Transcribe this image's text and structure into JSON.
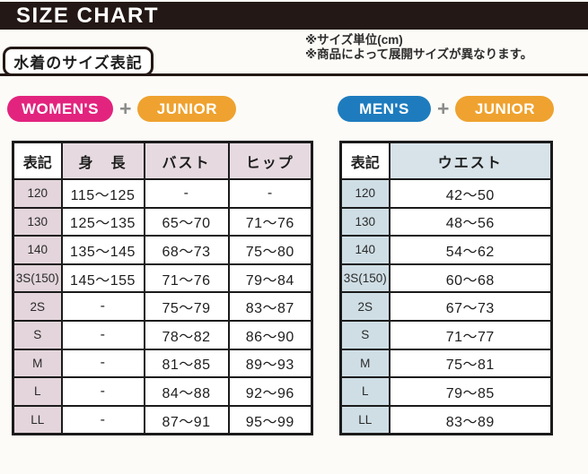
{
  "page": {
    "title": "SIZE CHART",
    "section_label": "水着のサイズ表記",
    "notes": [
      "※サイズ単位(cm)",
      "※商品によって展開サイズが異なります。"
    ]
  },
  "badges": {
    "womens": "WOMEN'S",
    "mens": "MEN'S",
    "junior": "JUNIOR",
    "plus": "+"
  },
  "colors": {
    "title_bar_black": "#231815",
    "womens_pink": "#e2247e",
    "mens_blue": "#1e7cbe",
    "junior_orange": "#efa22f",
    "plus_gray": "#8c8c8c",
    "womens_header_tint": "#e6dae0",
    "womens_col_tint": "#e3d5db",
    "mens_header_tint": "#d7e3e9",
    "mens_col_tint": "#cfdee5"
  },
  "womens_table": {
    "headers": [
      "表記",
      "身　長",
      "バスト",
      "ヒップ"
    ],
    "rows": [
      [
        "120",
        "115～125",
        "-",
        "-"
      ],
      [
        "130",
        "125～135",
        "65～70",
        "71～76"
      ],
      [
        "140",
        "135～145",
        "68～73",
        "75～80"
      ],
      [
        "3S(150)",
        "145～155",
        "71～76",
        "79～84"
      ],
      [
        "2S",
        "-",
        "75～79",
        "83～87"
      ],
      [
        "S",
        "-",
        "78～82",
        "86～90"
      ],
      [
        "M",
        "-",
        "81～85",
        "89～93"
      ],
      [
        "L",
        "-",
        "84～88",
        "92～96"
      ],
      [
        "LL",
        "-",
        "87～91",
        "95～99"
      ]
    ]
  },
  "mens_table": {
    "headers": [
      "表記",
      "ウエスト"
    ],
    "rows": [
      [
        "120",
        "42～50"
      ],
      [
        "130",
        "48～56"
      ],
      [
        "140",
        "54～62"
      ],
      [
        "3S(150)",
        "60～68"
      ],
      [
        "2S",
        "67～73"
      ],
      [
        "S",
        "71～77"
      ],
      [
        "M",
        "75～81"
      ],
      [
        "L",
        "79～85"
      ],
      [
        "LL",
        "83～89"
      ]
    ]
  }
}
